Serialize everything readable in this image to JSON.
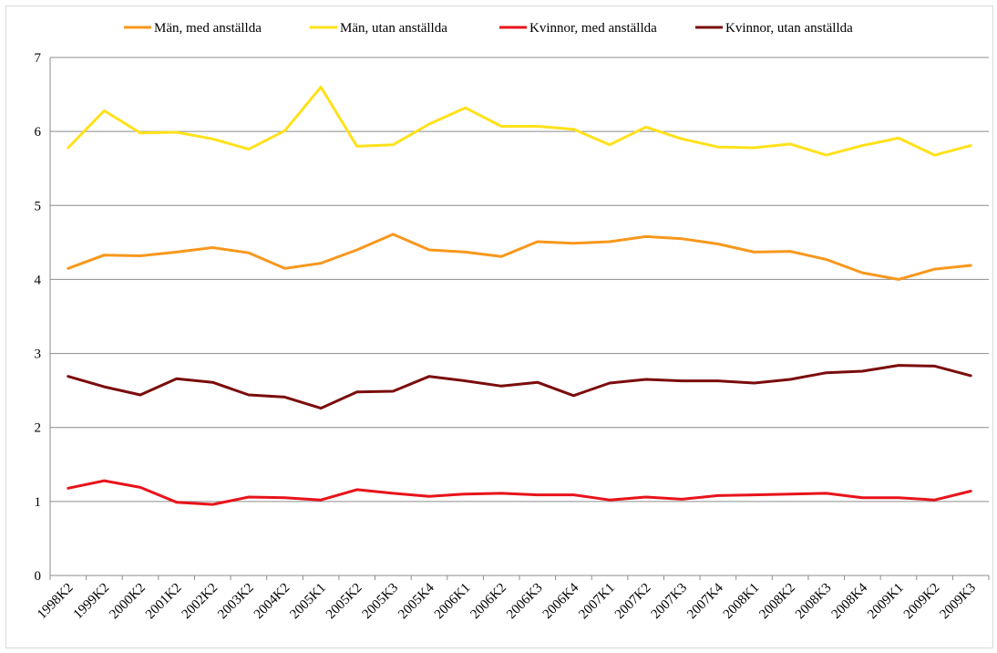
{
  "chart_data": {
    "type": "line",
    "title": "",
    "xlabel": "",
    "ylabel": "",
    "ylim": [
      0,
      7
    ],
    "yticks": [
      0,
      1,
      2,
      3,
      4,
      5,
      6,
      7
    ],
    "grid": true,
    "legend_position": "top",
    "categories": [
      "1998K2",
      "1999K2",
      "2000K2",
      "2001K2",
      "2002K2",
      "2003K2",
      "2004K2",
      "2005K1",
      "2005K2",
      "2005K3",
      "2005K4",
      "2006K1",
      "2006K2",
      "2006K3",
      "2006K4",
      "2007K1",
      "2007K2",
      "2007K3",
      "2007K4",
      "2008K1",
      "2008K2",
      "2008K3",
      "2008K4",
      "2009K1",
      "2009K2",
      "2009K3"
    ],
    "series": [
      {
        "name": "Män, med anställda",
        "color": "#f7981d",
        "values": [
          4.15,
          4.33,
          4.32,
          4.37,
          4.43,
          4.36,
          4.15,
          4.22,
          4.4,
          4.61,
          4.4,
          4.37,
          4.31,
          4.51,
          4.49,
          4.51,
          4.58,
          4.55,
          4.48,
          4.37,
          4.38,
          4.27,
          4.09,
          4.0,
          4.14,
          4.19
        ]
      },
      {
        "name": "Män, utan anställda",
        "color": "#ffe11a",
        "values": [
          5.78,
          6.28,
          5.98,
          5.99,
          5.9,
          5.76,
          6.01,
          6.6,
          5.8,
          5.82,
          6.1,
          6.32,
          6.07,
          6.07,
          6.03,
          5.82,
          6.06,
          5.9,
          5.79,
          5.78,
          5.83,
          5.68,
          5.81,
          5.91,
          5.68,
          5.81
        ]
      },
      {
        "name": "Kvinnor, med anställda",
        "color": "#e8131b",
        "values": [
          1.18,
          1.28,
          1.19,
          0.99,
          0.96,
          1.06,
          1.05,
          1.02,
          1.16,
          1.11,
          1.07,
          1.1,
          1.11,
          1.09,
          1.09,
          1.02,
          1.06,
          1.03,
          1.08,
          1.09,
          1.1,
          1.11,
          1.05,
          1.05,
          1.02,
          1.14
        ]
      },
      {
        "name": "Kvinnor, utan anställda",
        "color": "#7b0c0c",
        "values": [
          2.69,
          2.55,
          2.44,
          2.66,
          2.61,
          2.44,
          2.41,
          2.26,
          2.48,
          2.49,
          2.69,
          2.63,
          2.56,
          2.61,
          2.43,
          2.6,
          2.65,
          2.63,
          2.63,
          2.6,
          2.65,
          2.74,
          2.76,
          2.84,
          2.83,
          2.7
        ]
      }
    ]
  }
}
